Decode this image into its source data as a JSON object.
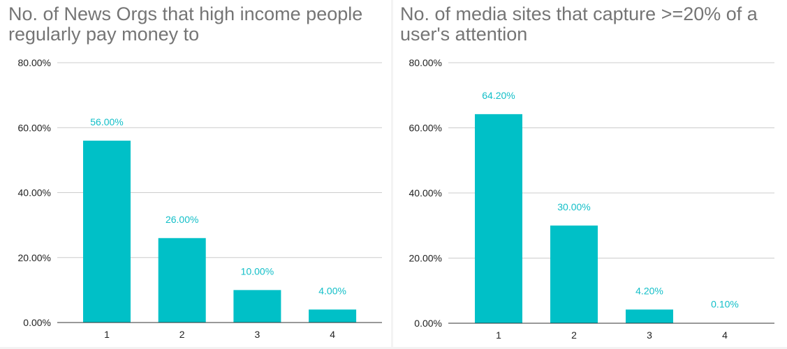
{
  "colors": {
    "bar": "#00c0c7",
    "label": "#12bfc8",
    "grid": "#cccccc",
    "axis": "#333333",
    "title": "#757575"
  },
  "chart_data": [
    {
      "type": "bar",
      "title": "No. of News Orgs that high income people regularly pay money to",
      "categories": [
        "1",
        "2",
        "3",
        "4"
      ],
      "values": [
        56.0,
        26.0,
        10.0,
        4.0
      ],
      "data_labels": [
        "56.00%",
        "26.00%",
        "10.00%",
        "4.00%"
      ],
      "ylim": [
        0,
        80
      ],
      "yticks": [
        0,
        20,
        40,
        60,
        80
      ],
      "ytick_labels": [
        "0.00%",
        "20.00%",
        "40.00%",
        "60.00%",
        "80.00%"
      ],
      "grid": true,
      "xlabel": "",
      "ylabel": ""
    },
    {
      "type": "bar",
      "title": "No. of media sites that capture >=20% of a user's attention",
      "categories": [
        "1",
        "2",
        "3",
        "4"
      ],
      "values": [
        64.2,
        30.0,
        4.2,
        0.1
      ],
      "data_labels": [
        "64.20%",
        "30.00%",
        "4.20%",
        "0.10%"
      ],
      "ylim": [
        0,
        80
      ],
      "yticks": [
        0,
        20,
        40,
        60,
        80
      ],
      "ytick_labels": [
        "0.00%",
        "20.00%",
        "40.00%",
        "60.00%",
        "80.00%"
      ],
      "grid": true,
      "xlabel": "",
      "ylabel": ""
    }
  ]
}
